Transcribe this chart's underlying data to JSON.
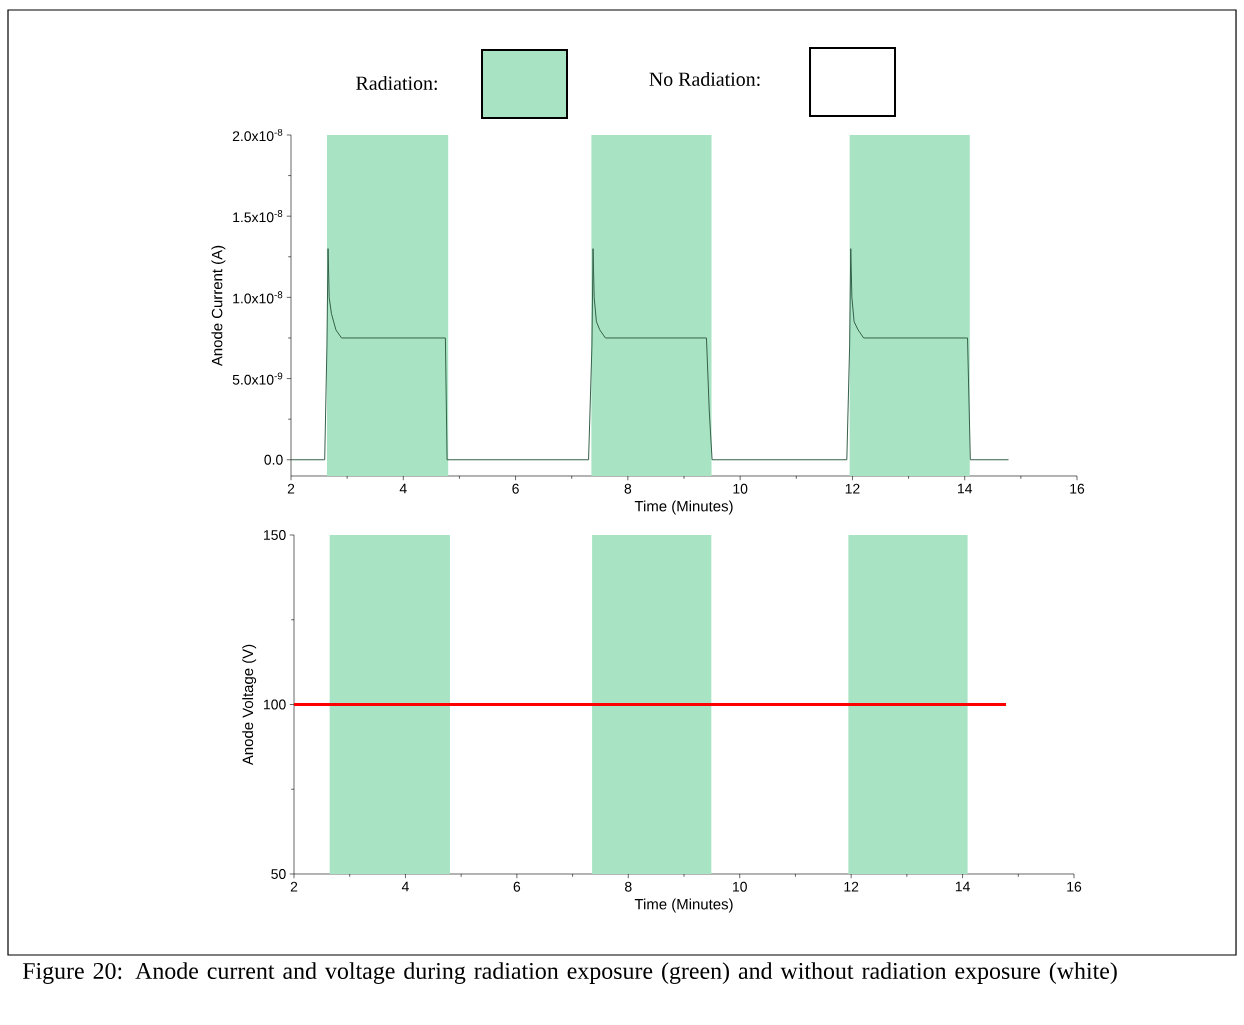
{
  "chart_data": [
    {
      "type": "line",
      "xlabel": "Time (Minutes)",
      "ylabel": "Anode Current (A)",
      "xlim": [
        2,
        16
      ],
      "xticks": [
        2,
        4,
        6,
        8,
        10,
        12,
        14,
        16
      ],
      "ylim": [
        -1e-09,
        2e-08
      ],
      "yticks": [
        {
          "value": 0,
          "label": "0.0"
        },
        {
          "value": 5e-09,
          "label": "5.0x10$^{-9}$"
        },
        {
          "value": 1e-08,
          "label": "1.0x10$^{-8}$"
        },
        {
          "value": 1.5e-08,
          "label": "1.5x10$^{-8}$"
        },
        {
          "value": 2e-08,
          "label": "2.0x10$^{-8}$"
        }
      ],
      "series": [
        {
          "color": "#35604a",
          "x": [
            2.0,
            2.3,
            2.6,
            2.64,
            2.66,
            2.68,
            2.72,
            2.8,
            2.9,
            3.0,
            3.5,
            4.0,
            4.5,
            4.75,
            4.78,
            4.82,
            5.0,
            6.0,
            7.0,
            7.3,
            7.36,
            7.38,
            7.4,
            7.44,
            7.5,
            7.6,
            7.8,
            8.5,
            9.0,
            9.4,
            9.45,
            9.5,
            10,
            11,
            11.9,
            11.95,
            11.97,
            11.99,
            12.03,
            12.1,
            12.2,
            12.5,
            13,
            13.5,
            14.0,
            14.05,
            14.1,
            14.3,
            14.78
          ],
          "values": [
            0,
            0,
            0,
            7e-09,
            1.3e-08,
            1e-08,
            9e-09,
            8e-09,
            7.5e-09,
            7.5e-09,
            7.5e-09,
            7.5e-09,
            7.5e-09,
            7.5e-09,
            0,
            0,
            0,
            0,
            0,
            0,
            7e-09,
            1.3e-08,
            1e-08,
            8.5e-09,
            8e-09,
            7.5e-09,
            7.5e-09,
            7.5e-09,
            7.5e-09,
            7.5e-09,
            3e-09,
            0,
            0,
            0,
            0,
            7e-09,
            1.3e-08,
            1e-08,
            8.5e-09,
            8e-09,
            7.5e-09,
            7.5e-09,
            7.5e-09,
            7.5e-09,
            7.5e-09,
            7.5e-09,
            0,
            0,
            0
          ]
        }
      ],
      "bands": [
        {
          "axis": "x",
          "from": 2.64,
          "to": 4.8,
          "color": "#a8e4c4"
        },
        {
          "axis": "x",
          "from": 7.35,
          "to": 9.49,
          "color": "#a8e4c4"
        },
        {
          "axis": "x",
          "from": 11.95,
          "to": 14.09,
          "color": "#a8e4c4"
        }
      ],
      "annotations": [
        "Radiation:",
        "No Radiation:"
      ]
    },
    {
      "type": "line",
      "xlabel": "Time (Minutes)",
      "ylabel": "Anode Voltage (V)",
      "xlim": [
        2,
        16
      ],
      "xticks": [
        2,
        4,
        6,
        8,
        10,
        12,
        14,
        16
      ],
      "ylim": [
        50,
        150
      ],
      "yticks": [
        50,
        100,
        150
      ],
      "series": [
        {
          "color": "#ff0000",
          "x": [
            2,
            14.78
          ],
          "values": [
            100,
            100
          ]
        }
      ],
      "bands": [
        {
          "axis": "x",
          "from": 2.64,
          "to": 4.8,
          "color": "#a8e4c4"
        },
        {
          "axis": "x",
          "from": 7.35,
          "to": 9.49,
          "color": "#a8e4c4"
        },
        {
          "axis": "x",
          "from": 11.95,
          "to": 14.09,
          "color": "#a8e4c4"
        }
      ],
      "annotations": [
        "Figure 20: Anode current and voltage during radiation exposure (green) and without radiation exposure (white)"
      ]
    }
  ]
}
